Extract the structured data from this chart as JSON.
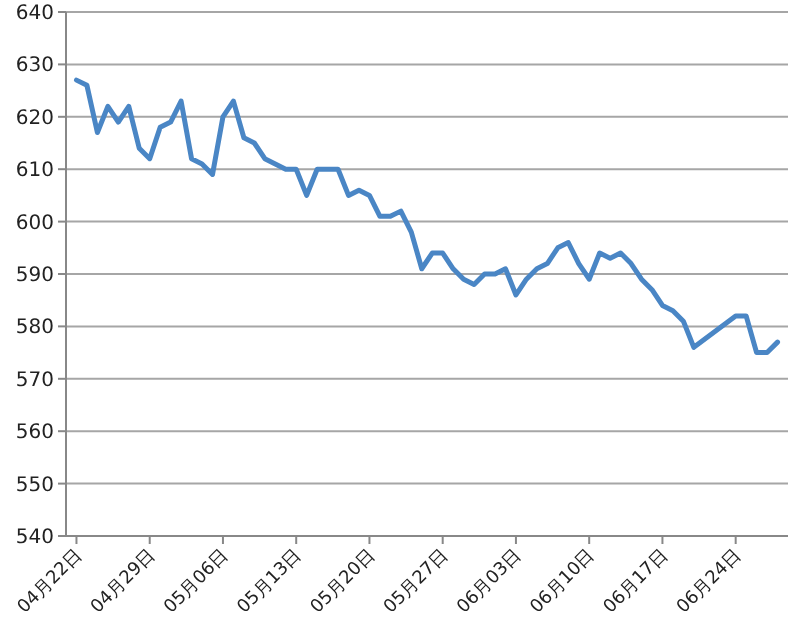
{
  "chart_data": {
    "type": "line",
    "color": "#4a86c5",
    "grid": "y",
    "x": [
      "--04-22",
      "--04-23",
      "--04-24",
      "--04-25",
      "--04-26",
      "--04-27",
      "--04-28",
      "--04-29",
      "--04-30",
      "--05-01",
      "--05-02",
      "--05-03",
      "--05-04",
      "--05-05",
      "--05-06",
      "--05-07",
      "--05-08",
      "--05-09",
      "--05-10",
      "--05-11",
      "--05-12",
      "--05-13",
      "--05-14",
      "--05-15",
      "--05-16",
      "--05-17",
      "--05-18",
      "--05-19",
      "--05-20",
      "--05-21",
      "--05-22",
      "--05-23",
      "--05-24",
      "--05-25",
      "--05-26",
      "--05-27",
      "--05-28",
      "--05-29",
      "--05-30",
      "--05-31",
      "--06-01",
      "--06-02",
      "--06-03",
      "--06-04",
      "--06-05",
      "--06-06",
      "--06-07",
      "--06-08",
      "--06-09",
      "--06-10",
      "--06-11",
      "--06-12",
      "--06-13",
      "--06-14",
      "--06-15",
      "--06-16",
      "--06-17",
      "--06-18",
      "--06-19",
      "--06-20",
      "--06-24",
      "--06-25",
      "--06-26",
      "--06-27",
      "--06-28"
    ],
    "values": [
      627,
      626,
      617,
      622,
      619,
      622,
      614,
      612,
      618,
      619,
      623,
      612,
      611,
      609,
      620,
      623,
      616,
      615,
      612,
      611,
      610,
      610,
      605,
      610,
      610,
      610,
      605,
      606,
      605,
      601,
      601,
      602,
      598,
      591,
      594,
      594,
      591,
      589,
      588,
      590,
      590,
      591,
      586,
      589,
      591,
      592,
      595,
      596,
      592,
      589,
      594,
      593,
      594,
      592,
      589,
      587,
      584,
      583,
      581,
      576,
      582,
      582,
      575,
      575,
      577
    ],
    "xlim": [
      "--04-21",
      "--06-29"
    ],
    "xticks": [
      {
        "value": "--04-22",
        "label": "04月22日"
      },
      {
        "value": "--04-29",
        "label": "04月29日"
      },
      {
        "value": "--05-06",
        "label": "05月06日"
      },
      {
        "value": "--05-13",
        "label": "05月13日"
      },
      {
        "value": "--05-20",
        "label": "05月20日"
      },
      {
        "value": "--05-27",
        "label": "05月27日"
      },
      {
        "value": "--06-03",
        "label": "06月03日"
      },
      {
        "value": "--06-10",
        "label": "06月10日"
      },
      {
        "value": "--06-17",
        "label": "06月17日"
      },
      {
        "value": "--06-24",
        "label": "06月24日"
      }
    ],
    "ylim": [
      540,
      640
    ],
    "yticks": [
      540,
      550,
      560,
      570,
      580,
      590,
      600,
      610,
      620,
      630,
      640
    ]
  }
}
